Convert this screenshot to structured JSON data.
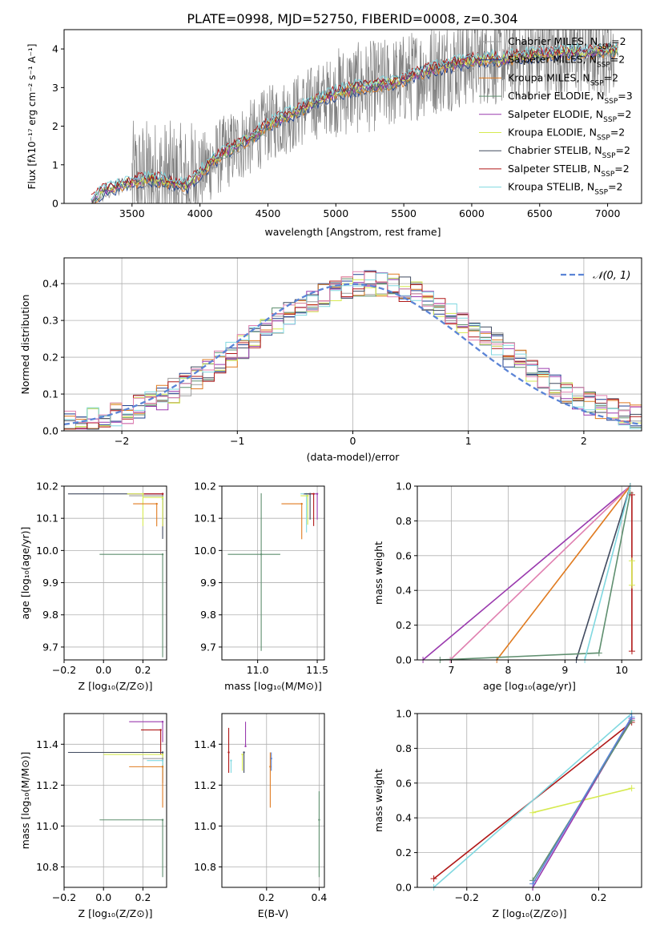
{
  "figure": {
    "title": "PLATE=0998, MJD=52750, FIBERID=0008, z=0.304"
  },
  "colors": {
    "chabrier_miles": "#9e9e9e",
    "salpeter_miles": "#1f3f8f",
    "kroupa_miles": "#e07b20",
    "chabrier_elodie": "#5f8f6f",
    "salpeter_elodie": "#9a3aae",
    "kroupa_elodie": "#d6ea50",
    "chabrier_stelib": "#404a5f",
    "salpeter_stelib": "#b01818",
    "kroupa_stelib": "#80d8e0",
    "pink": "#e080b0",
    "normal_curve": "#5b84d6",
    "data": "#808080"
  },
  "chart_data": [
    {
      "id": "spectrum",
      "type": "line",
      "xlabel": "wavelength [Angstrom, rest frame]",
      "ylabel": "Flux [fλ10⁻¹⁷ erg cm⁻² s⁻¹ A⁻¹]",
      "xlim": [
        3000,
        7250
      ],
      "ylim": [
        0,
        4.5
      ],
      "xticks": [
        "3500",
        "4000",
        "4500",
        "5000",
        "5500",
        "6000",
        "6500",
        "7000"
      ],
      "yticks": [
        "0",
        "1",
        "2",
        "3",
        "4"
      ],
      "legend_position": "top-right",
      "legend": [
        {
          "label": "Chabrier MILES, N",
          "sub": "SSP",
          "suffix": "=2",
          "color": "#9e9e9e"
        },
        {
          "label": "Salpeter MILES, N",
          "sub": "SSP",
          "suffix": "=2",
          "color": "#1f3f8f"
        },
        {
          "label": "Kroupa MILES, N",
          "sub": "SSP",
          "suffix": "=2",
          "color": "#e07b20"
        },
        {
          "label": "Chabrier ELODIE, N",
          "sub": "SSP",
          "suffix": "=3",
          "color": "#5f8f6f"
        },
        {
          "label": "Salpeter ELODIE, N",
          "sub": "SSP",
          "suffix": "=2",
          "color": "#9a3aae"
        },
        {
          "label": "Kroupa ELODIE, N",
          "sub": "SSP",
          "suffix": "=2",
          "color": "#d6ea50"
        },
        {
          "label": "Chabrier STELIB, N",
          "sub": "SSP",
          "suffix": "=2",
          "color": "#404a5f"
        },
        {
          "label": "Salpeter STELIB, N",
          "sub": "SSP",
          "suffix": "=2",
          "color": "#b01818"
        },
        {
          "label": "Kroupa STELIB, N",
          "sub": "SSP",
          "suffix": "=2",
          "color": "#80d8e0"
        }
      ],
      "model_x": [
        3200,
        3300,
        3400,
        3500,
        3600,
        3700,
        3800,
        3900,
        4000,
        4100,
        4200,
        4300,
        4400,
        4500,
        4600,
        4700,
        4800,
        4900,
        5000,
        5100,
        5200,
        5300,
        5400,
        5500,
        5600,
        5700,
        5800,
        5900,
        6000,
        6100,
        6200,
        6300,
        6400,
        6500,
        6600,
        6700,
        6800,
        6900,
        7000,
        7100
      ],
      "model_y": [
        0.05,
        0.35,
        0.45,
        0.55,
        0.62,
        0.6,
        0.55,
        0.45,
        0.78,
        1.1,
        1.35,
        1.55,
        1.75,
        2.05,
        2.2,
        2.35,
        2.55,
        2.7,
        2.85,
        2.95,
        3.0,
        3.05,
        3.1,
        3.2,
        3.35,
        3.45,
        3.55,
        3.62,
        3.7,
        3.75,
        3.72,
        3.78,
        3.82,
        3.85,
        3.86,
        3.9,
        3.9,
        3.92,
        3.95,
        3.95
      ],
      "data_x_range": [
        3500,
        7050
      ]
    },
    {
      "id": "residuals",
      "type": "line",
      "xlabel": "(data-model)/error",
      "ylabel": "Normed distribution",
      "xlim": [
        -2.5,
        2.5
      ],
      "ylim": [
        0,
        0.47
      ],
      "xticks": [
        "−2",
        "−1",
        "0",
        "1",
        "2"
      ],
      "xtick_values": [
        -2,
        -1,
        0,
        1,
        2
      ],
      "yticks": [
        "0.0",
        "0.1",
        "0.2",
        "0.3",
        "0.4"
      ],
      "grid": true,
      "legend_position": "top-right",
      "legend": [
        {
          "label": "𝒩(0, 1)",
          "color": "#5b84d6",
          "style": "dashed"
        }
      ],
      "bin_width": 0.1
    },
    {
      "id": "age_vs_Z",
      "type": "scatter",
      "xlabel": "Z [log₁₀(Z/Z⊙)]",
      "ylabel": "age  [log₁₀(age/yr)]",
      "xlim": [
        -0.2,
        0.32
      ],
      "ylim": [
        9.66,
        10.2
      ],
      "xticks": [
        "−0.2",
        "0.0",
        "0.2"
      ],
      "xtick_values": [
        -0.2,
        0.0,
        0.2
      ],
      "yticks": [
        "9.7",
        "9.8",
        "9.9",
        "10.0",
        "10.1",
        "10.2"
      ],
      "ytick_values": [
        9.7,
        9.8,
        9.9,
        10.0,
        10.1,
        10.2
      ],
      "grid": true,
      "points": [
        {
          "x": 0.3,
          "y": 10.176,
          "xerr": [
            0.48,
            0.0
          ],
          "yerr": [
            0.14,
            0.0
          ],
          "color": "#404a5f"
        },
        {
          "x": 0.3,
          "y": 10.176,
          "xerr": [
            0.17,
            0.0
          ],
          "yerr": [
            0.1,
            0.0
          ],
          "color": "#9a3aae"
        },
        {
          "x": 0.3,
          "y": 10.176,
          "xerr": [
            0.1,
            0.0
          ],
          "yerr": [
            0.1,
            0.0
          ],
          "color": "#b01818"
        },
        {
          "x": 0.3,
          "y": 10.17,
          "xerr": [
            0.17,
            0.0
          ],
          "yerr": [
            0.05,
            0.0
          ],
          "color": "#9e9e9e"
        },
        {
          "x": 0.3,
          "y": 10.16,
          "xerr": [
            0.0,
            0.0
          ],
          "yerr": [
            0.08,
            0.0
          ],
          "color": "#80d8e0"
        },
        {
          "x": 0.3,
          "y": 10.165,
          "xerr": [
            0.1,
            0.0
          ],
          "yerr": [
            0.09,
            0.0
          ],
          "color": "#d6ea50"
        },
        {
          "x": 0.2,
          "y": 10.176,
          "xerr": [
            0.08,
            0.0
          ],
          "yerr": [
            0.1,
            0.0
          ],
          "color": "#d6ea50"
        },
        {
          "x": 0.27,
          "y": 10.145,
          "xerr": [
            0.12,
            0.0
          ],
          "yerr": [
            0.07,
            0.0
          ],
          "color": "#e07b20"
        },
        {
          "x": 0.3,
          "y": 9.988,
          "xerr": [
            0.32,
            0.0
          ],
          "yerr": [
            0.32,
            0.0
          ],
          "color": "#5f8f6f"
        }
      ]
    },
    {
      "id": "age_vs_mass",
      "type": "scatter",
      "xlabel": "mass [log₁₀(M/M⊙)]",
      "ylabel": "",
      "xlim": [
        10.7,
        11.56
      ],
      "ylim": [
        9.66,
        10.2
      ],
      "xticks": [
        "11.0",
        "11.5"
      ],
      "xtick_values": [
        11.0,
        11.5
      ],
      "yticks": [
        "9.7",
        "9.8",
        "9.9",
        "10.0",
        "10.1",
        "10.2"
      ],
      "ytick_values": [
        9.7,
        9.8,
        9.9,
        10.0,
        10.1,
        10.2
      ],
      "grid": true,
      "points": [
        {
          "x": 11.03,
          "y": 9.988,
          "xerr": [
            0.28,
            0.16
          ],
          "yerr": [
            0.3,
            0.19
          ],
          "color": "#5f8f6f"
        },
        {
          "x": 11.5,
          "y": 10.176,
          "xerr": [
            0.12,
            0.0
          ],
          "yerr": [
            0.08,
            0.0
          ],
          "color": "#9a3aae"
        },
        {
          "x": 11.47,
          "y": 10.176,
          "xerr": [
            0.08,
            0.0
          ],
          "yerr": [
            0.1,
            0.0
          ],
          "color": "#b01818"
        },
        {
          "x": 11.37,
          "y": 10.145,
          "xerr": [
            0.17,
            0.0
          ],
          "yerr": [
            0.11,
            0.0
          ],
          "color": "#e07b20"
        },
        {
          "x": 11.41,
          "y": 10.176,
          "xerr": [
            0.05,
            0.0
          ],
          "yerr": [
            0.12,
            0.0
          ],
          "color": "#80d8e0"
        },
        {
          "x": 11.44,
          "y": 10.176,
          "xerr": [
            0.05,
            0.0
          ],
          "yerr": [
            0.08,
            0.0
          ],
          "color": "#404a5f"
        },
        {
          "x": 11.42,
          "y": 10.17,
          "xerr": [
            0.06,
            0.0
          ],
          "yerr": [
            0.09,
            0.0
          ],
          "color": "#d6ea50"
        }
      ]
    },
    {
      "id": "weight_vs_age",
      "type": "line",
      "xlabel": "age  [log₁₀(age/yr)]",
      "ylabel": "mass weight",
      "xlim": [
        6.4,
        10.35
      ],
      "ylim": [
        0.0,
        1.0
      ],
      "xticks": [
        "7",
        "8",
        "9",
        "10"
      ],
      "xtick_values": [
        7,
        8,
        9,
        10
      ],
      "yticks": [
        "0.0",
        "0.2",
        "0.4",
        "0.6",
        "0.8",
        "1.0"
      ],
      "ytick_values": [
        0.0,
        0.2,
        0.4,
        0.6,
        0.8,
        1.0
      ],
      "grid": true,
      "series": [
        {
          "color": "#9a3aae",
          "x": [
            6.5,
            10.15
          ],
          "y": [
            0.0,
            1.0
          ]
        },
        {
          "color": "#e080b0",
          "x": [
            6.98,
            10.15
          ],
          "y": [
            0.0,
            1.0
          ]
        },
        {
          "color": "#e07b20",
          "x": [
            7.8,
            10.15
          ],
          "y": [
            0.0,
            1.0
          ]
        },
        {
          "color": "#404a5f",
          "x": [
            9.2,
            10.15
          ],
          "y": [
            0.0,
            1.0
          ]
        },
        {
          "color": "#5f8f6f",
          "x": [
            6.8,
            9.6,
            10.15
          ],
          "y": [
            0.0,
            0.04,
            0.96
          ]
        },
        {
          "color": "#80d8e0",
          "x": [
            9.35,
            10.15
          ],
          "y": [
            0.0,
            1.0
          ]
        },
        {
          "color": "#b01818",
          "x": [
            10.18,
            10.18
          ],
          "y": [
            0.05,
            0.95
          ]
        },
        {
          "color": "#d6ea50",
          "x": [
            10.18,
            10.18
          ],
          "y": [
            0.43,
            0.57
          ]
        }
      ]
    },
    {
      "id": "mass_vs_Z",
      "type": "scatter",
      "xlabel": "Z [log₁₀(Z/Z⊙)]",
      "ylabel": "mass [log₁₀(M/M⊙)]",
      "xlim": [
        -0.2,
        0.32
      ],
      "ylim": [
        10.7,
        11.55
      ],
      "xticks": [
        "−0.2",
        "0.0",
        "0.2"
      ],
      "xtick_values": [
        -0.2,
        0.0,
        0.2
      ],
      "yticks": [
        "10.8",
        "11.0",
        "11.2",
        "11.4"
      ],
      "ytick_values": [
        10.8,
        11.0,
        11.2,
        11.4
      ],
      "grid": true,
      "points": [
        {
          "x": 0.3,
          "y": 11.51,
          "xerr": [
            0.17,
            0.0
          ],
          "yerr": [
            0.1,
            0.0
          ],
          "color": "#9a3aae"
        },
        {
          "x": 0.29,
          "y": 11.47,
          "xerr": [
            0.1,
            0.0
          ],
          "yerr": [
            0.12,
            0.0
          ],
          "color": "#b01818"
        },
        {
          "x": 0.3,
          "y": 11.36,
          "xerr": [
            0.48,
            0.0
          ],
          "yerr": [
            0.15,
            0.0
          ],
          "color": "#404a5f"
        },
        {
          "x": 0.3,
          "y": 11.35,
          "xerr": [
            0.3,
            0.0
          ],
          "yerr": [
            0.1,
            0.0
          ],
          "color": "#d6ea50"
        },
        {
          "x": 0.3,
          "y": 11.33,
          "xerr": [
            0.1,
            0.0
          ],
          "yerr": [
            0.1,
            0.0
          ],
          "color": "#9e9e9e"
        },
        {
          "x": 0.3,
          "y": 11.32,
          "xerr": [
            0.08,
            0.0
          ],
          "yerr": [
            0.06,
            0.0
          ],
          "color": "#80d8e0"
        },
        {
          "x": 0.3,
          "y": 11.29,
          "xerr": [
            0.17,
            0.0
          ],
          "yerr": [
            0.2,
            0.0
          ],
          "color": "#e07b20"
        },
        {
          "x": 0.3,
          "y": 11.03,
          "xerr": [
            0.32,
            0.0
          ],
          "yerr": [
            0.28,
            0.0
          ],
          "color": "#5f8f6f"
        }
      ]
    },
    {
      "id": "mass_vs_ebv",
      "type": "scatter",
      "xlabel": "E(B-V)",
      "ylabel": "",
      "xlim": [
        0.03,
        0.42
      ],
      "ylim": [
        10.7,
        11.55
      ],
      "xticks": [
        "0.2",
        "0.4"
      ],
      "xtick_values": [
        0.2,
        0.4
      ],
      "yticks": [
        "10.8",
        "11.0",
        "11.2",
        "11.4"
      ],
      "ytick_values": [
        10.8,
        11.0,
        11.2,
        11.4
      ],
      "grid": true,
      "points": [
        {
          "x": 0.056,
          "y": 11.36,
          "xerr": [
            0.0,
            0.0
          ],
          "yerr": [
            0.1,
            0.12
          ],
          "color": "#b01818"
        },
        {
          "x": 0.065,
          "y": 11.32,
          "xerr": [
            0.0,
            0.0
          ],
          "yerr": [
            0.06,
            0.0
          ],
          "color": "#80d8e0"
        },
        {
          "x": 0.108,
          "y": 11.35,
          "xerr": [
            0.0,
            0.0
          ],
          "yerr": [
            0.08,
            0.0
          ],
          "color": "#d6ea50"
        },
        {
          "x": 0.114,
          "y": 11.36,
          "xerr": [
            0.0,
            0.0
          ],
          "yerr": [
            0.1,
            0.0
          ],
          "color": "#404a5f"
        },
        {
          "x": 0.12,
          "y": 11.39,
          "xerr": [
            0.0,
            0.0
          ],
          "yerr": [
            0.0,
            0.12
          ],
          "color": "#9a3aae"
        },
        {
          "x": 0.214,
          "y": 11.29,
          "xerr": [
            0.0,
            0.0
          ],
          "yerr": [
            0.2,
            0.07
          ],
          "color": "#e07b20"
        },
        {
          "x": 0.218,
          "y": 11.33,
          "xerr": [
            0.0,
            0.0
          ],
          "yerr": [
            0.06,
            0.03
          ],
          "color": "#5b84d6"
        },
        {
          "x": 0.4,
          "y": 11.03,
          "xerr": [
            0.0,
            0.0
          ],
          "yerr": [
            0.28,
            0.14
          ],
          "color": "#5f8f6f"
        }
      ]
    },
    {
      "id": "weight_vs_Z",
      "type": "line",
      "xlabel": "Z [log₁₀(Z/Z⊙)]",
      "ylabel": "mass weight",
      "xlim": [
        -0.35,
        0.33
      ],
      "ylim": [
        0.0,
        1.0
      ],
      "xticks": [
        "−0.2",
        "0.0",
        "0.2"
      ],
      "xtick_values": [
        -0.2,
        0.0,
        0.2
      ],
      "yticks": [
        "0.0",
        "0.2",
        "0.4",
        "0.6",
        "0.8",
        "1.0"
      ],
      "ytick_values": [
        0.0,
        0.2,
        0.4,
        0.6,
        0.8,
        1.0
      ],
      "grid": true,
      "series": [
        {
          "color": "#b01818",
          "x": [
            -0.3,
            0.3
          ],
          "y": [
            0.05,
            0.95
          ]
        },
        {
          "color": "#80d8e0",
          "x": [
            -0.3,
            0.3
          ],
          "y": [
            0.0,
            1.0
          ]
        },
        {
          "color": "#d6ea50",
          "x": [
            0.0,
            0.3
          ],
          "y": [
            0.43,
            0.57
          ]
        },
        {
          "color": "#9a3aae",
          "x": [
            0.0,
            0.3
          ],
          "y": [
            0.0,
            0.97
          ]
        },
        {
          "color": "#5f8f6f",
          "x": [
            0.0,
            0.3
          ],
          "y": [
            0.04,
            0.96
          ]
        },
        {
          "color": "#5b84d6",
          "x": [
            0.0,
            0.3
          ],
          "y": [
            0.02,
            0.98
          ]
        }
      ]
    }
  ]
}
